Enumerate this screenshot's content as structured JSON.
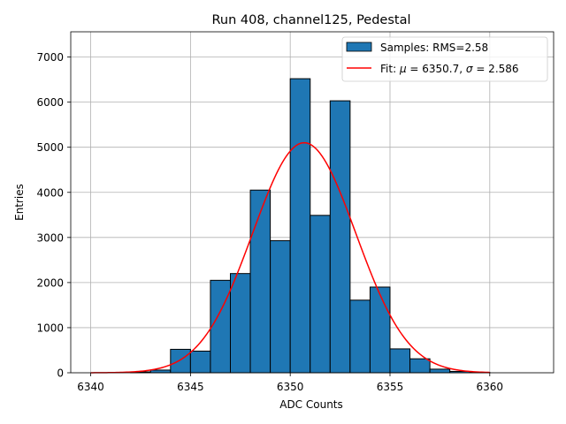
{
  "chart_data": {
    "type": "histogram",
    "title": "Run 408, channel125, Pedestal",
    "xlabel": "ADC Counts",
    "ylabel": "Entries",
    "xlim": [
      6339,
      6363.2
    ],
    "ylim": [
      0,
      7560
    ],
    "xticks": [
      6340,
      6345,
      6350,
      6355,
      6360
    ],
    "yticks": [
      0,
      1000,
      2000,
      3000,
      4000,
      5000,
      6000,
      7000
    ],
    "grid": true,
    "legend_position": "top-right",
    "bins": [
      {
        "left": 6342,
        "right": 6343,
        "value": 20
      },
      {
        "left": 6343,
        "right": 6344,
        "value": 60
      },
      {
        "left": 6344,
        "right": 6345,
        "value": 520
      },
      {
        "left": 6345,
        "right": 6346,
        "value": 480
      },
      {
        "left": 6346,
        "right": 6347,
        "value": 2050
      },
      {
        "left": 6347,
        "right": 6348,
        "value": 2200
      },
      {
        "left": 6348,
        "right": 6349,
        "value": 4050
      },
      {
        "left": 6349,
        "right": 6350,
        "value": 2930
      },
      {
        "left": 6350,
        "right": 6351,
        "value": 6520
      },
      {
        "left": 6351,
        "right": 6352,
        "value": 3490
      },
      {
        "left": 6352,
        "right": 6353,
        "value": 6030
      },
      {
        "left": 6353,
        "right": 6354,
        "value": 1610
      },
      {
        "left": 6354,
        "right": 6355,
        "value": 1900
      },
      {
        "left": 6355,
        "right": 6356,
        "value": 530
      },
      {
        "left": 6356,
        "right": 6357,
        "value": 310
      },
      {
        "left": 6357,
        "right": 6358,
        "value": 80
      },
      {
        "left": 6358,
        "right": 6359,
        "value": 30
      },
      {
        "left": 6359,
        "right": 6360,
        "value": 10
      }
    ],
    "fit": {
      "mu": 6350.7,
      "sigma": 2.586,
      "amplitude": 5100,
      "x_range": [
        6340,
        6360
      ]
    },
    "legend": {
      "hist_label": "Samples: RMS=2.58",
      "fit_label_prefix": "Fit: ",
      "fit_mu_symbol": "μ",
      "fit_mu_text": " = 6350.7, ",
      "fit_sigma_symbol": "σ",
      "fit_sigma_text": " = 2.586"
    },
    "colors": {
      "bar": "#1f77b4",
      "bar_edge": "#000000",
      "fit": "#ff0000",
      "grid": "#b0b0b0"
    }
  }
}
